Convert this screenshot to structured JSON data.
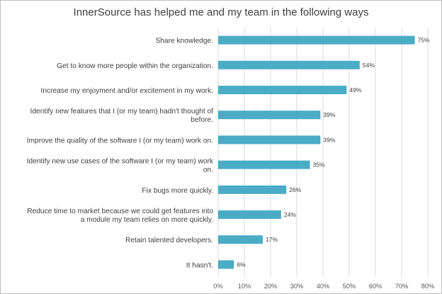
{
  "chart_data": {
    "type": "bar",
    "orientation": "horizontal",
    "title": "InnerSource has helped me and my team in the following ways",
    "xlabel": "",
    "ylabel": "",
    "xlim": [
      0,
      80
    ],
    "ticks": [
      "0%",
      "10%",
      "20%",
      "30%",
      "40%",
      "50%",
      "60%",
      "70%",
      "80%"
    ],
    "grid": true,
    "legend": "none",
    "bar_color": "#4bacc6",
    "categories": [
      [
        "Share knowledge."
      ],
      [
        "Get to know more people within the organization."
      ],
      [
        "Increase my enjoyment and/or excitement in my work."
      ],
      [
        "Identify new features that I (or my team) hadn't thought of",
        "before."
      ],
      [
        "Improve the quality of the software I (or my team) work on."
      ],
      [
        "Identify new use cases of the software I (or my team) work",
        "on."
      ],
      [
        "Fix bugs more quickly."
      ],
      [
        "Reduce time to market because we could get features into",
        "a module my team relies on more quickly."
      ],
      [
        "Retain talented developers."
      ],
      [
        "It hasn't."
      ]
    ],
    "values": [
      75,
      54,
      49,
      39,
      39,
      35,
      26,
      24,
      17,
      6
    ],
    "data_labels": [
      "75%",
      "54%",
      "49%",
      "39%",
      "39%",
      "35%",
      "26%",
      "24%",
      "17%",
      "6%"
    ]
  }
}
